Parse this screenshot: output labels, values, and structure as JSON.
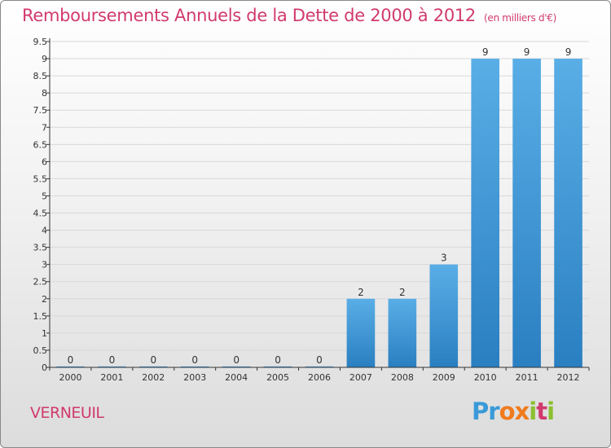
{
  "page": {
    "title": "Remboursements Annuels de la Dette de 2000 à 2012",
    "subtitle": "(en milliers d'€)",
    "commune": "VERNEUIL",
    "logo": {
      "text": "Proxiti",
      "letters": [
        {
          "ch": "P",
          "color": "#3a9ad9"
        },
        {
          "ch": "r",
          "color": "#3a9ad9"
        },
        {
          "ch": "o",
          "color": "#f07b1d"
        },
        {
          "ch": "x",
          "color": "#f07b1d"
        },
        {
          "ch": "i",
          "color": "#8bbf2f"
        },
        {
          "ch": "t",
          "color": "#d13a6e"
        },
        {
          "ch": "i",
          "color": "#8bbf2f"
        }
      ]
    }
  },
  "colors": {
    "title": "#d13a6e",
    "bar_light": "#5aaee6",
    "bar_dark": "#2a7fc1",
    "axis": "#333333",
    "grid": "#d8d8d8"
  },
  "chart_data": {
    "type": "bar",
    "categories": [
      "2000",
      "2001",
      "2002",
      "2003",
      "2004",
      "2005",
      "2006",
      "2007",
      "2008",
      "2009",
      "2010",
      "2011",
      "2012"
    ],
    "values": [
      0,
      0,
      0,
      0,
      0,
      0,
      0,
      2,
      2,
      3,
      9,
      9,
      9
    ],
    "data_labels": [
      "0",
      "0",
      "0",
      "0",
      "0",
      "0",
      "0",
      "2",
      "2",
      "3",
      "9",
      "9",
      "9"
    ],
    "y_ticks": [
      0,
      0.5,
      1,
      1.5,
      2,
      2.5,
      3,
      3.5,
      4,
      4.5,
      5,
      5.5,
      6,
      6.5,
      7,
      7.5,
      8,
      8.5,
      9,
      9.5
    ],
    "y_tick_labels": [
      "0",
      "0.5",
      "1",
      "1.5",
      "2",
      "2.5",
      "3",
      "3.5",
      "4",
      "4.5",
      "5",
      "5.5",
      "6",
      "6.5",
      "7",
      "7.5",
      "8",
      "8.5",
      "9",
      "9.5"
    ],
    "ylim": [
      0,
      9.5
    ],
    "xlabel": "",
    "ylabel": "",
    "grid": true,
    "legend": "none"
  }
}
